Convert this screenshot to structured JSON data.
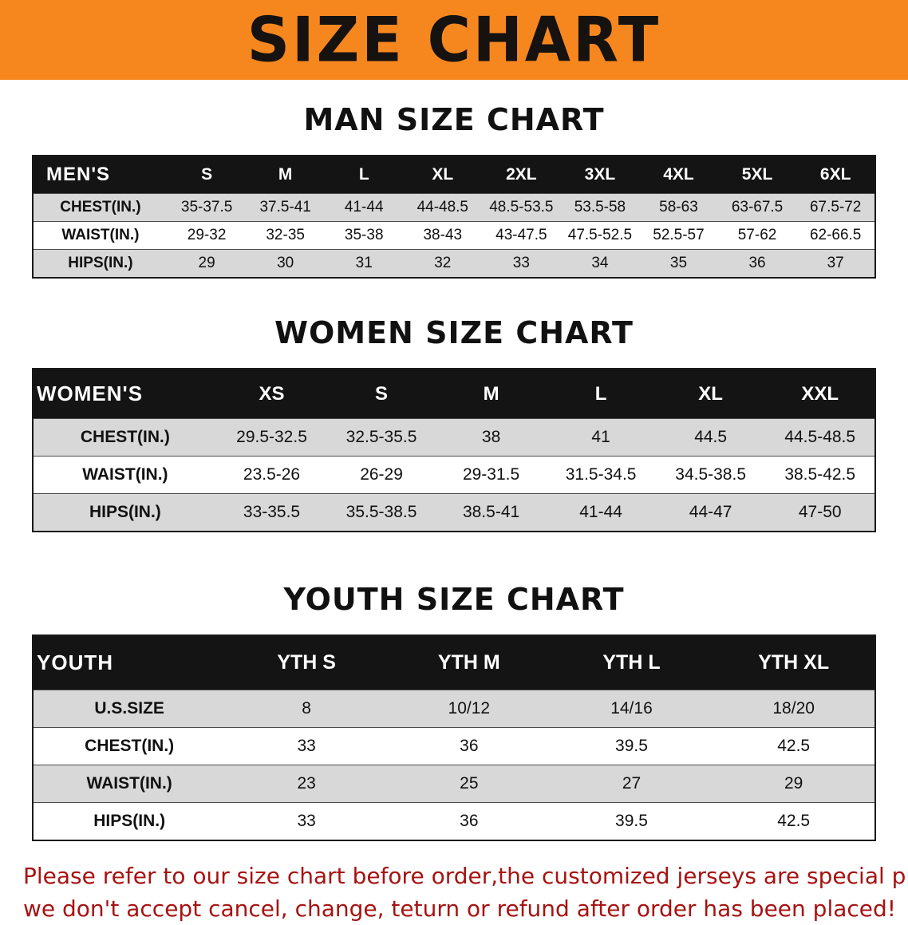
{
  "banner": {
    "title": "SIZE CHART"
  },
  "colors": {
    "banner_bg": "#f6871f",
    "header_bg": "#141414",
    "row_alt": "#d8d8d8",
    "disclaimer": "#a81212"
  },
  "chart_data": [
    {
      "type": "table",
      "title": "MAN SIZE CHART",
      "columns": [
        "MEN'S",
        "S",
        "M",
        "L",
        "XL",
        "2XL",
        "3XL",
        "4XL",
        "5XL",
        "6XL"
      ],
      "rows": [
        [
          "CHEST(IN.)",
          "35-37.5",
          "37.5-41",
          "41-44",
          "44-48.5",
          "48.5-53.5",
          "53.5-58",
          "58-63",
          "63-67.5",
          "67.5-72"
        ],
        [
          "WAIST(IN.)",
          "29-32",
          "32-35",
          "35-38",
          "38-43",
          "43-47.5",
          "47.5-52.5",
          "52.5-57",
          "57-62",
          "62-66.5"
        ],
        [
          "HIPS(IN.)",
          "29",
          "30",
          "31",
          "32",
          "33",
          "34",
          "35",
          "36",
          "37"
        ]
      ]
    },
    {
      "type": "table",
      "title": "WOMEN SIZE CHART",
      "columns": [
        "WOMEN'S",
        "XS",
        "S",
        "M",
        "L",
        "XL",
        "XXL"
      ],
      "rows": [
        [
          "CHEST(IN.)",
          "29.5-32.5",
          "32.5-35.5",
          "38",
          "41",
          "44.5",
          "44.5-48.5"
        ],
        [
          "WAIST(IN.)",
          "23.5-26",
          "26-29",
          "29-31.5",
          "31.5-34.5",
          "34.5-38.5",
          "38.5-42.5"
        ],
        [
          "HIPS(IN.)",
          "33-35.5",
          "35.5-38.5",
          "38.5-41",
          "41-44",
          "44-47",
          "47-50"
        ]
      ]
    },
    {
      "type": "table",
      "title": "YOUTH SIZE CHART",
      "columns": [
        "YOUTH",
        "YTH S",
        "YTH M",
        "YTH L",
        "YTH XL"
      ],
      "rows": [
        [
          "U.S.SIZE",
          "8",
          "10/12",
          "14/16",
          "18/20"
        ],
        [
          "CHEST(IN.)",
          "33",
          "36",
          "39.5",
          "42.5"
        ],
        [
          "WAIST(IN.)",
          "23",
          "25",
          "27",
          "29"
        ],
        [
          "HIPS(IN.)",
          "33",
          "36",
          "39.5",
          "42.5"
        ]
      ]
    }
  ],
  "disclaimer": {
    "line1": "Please refer to our size chart before order,the customized jerseys are special products,",
    "line2": "we don't accept cancel, change, teturn or refund after order has been placed!"
  }
}
